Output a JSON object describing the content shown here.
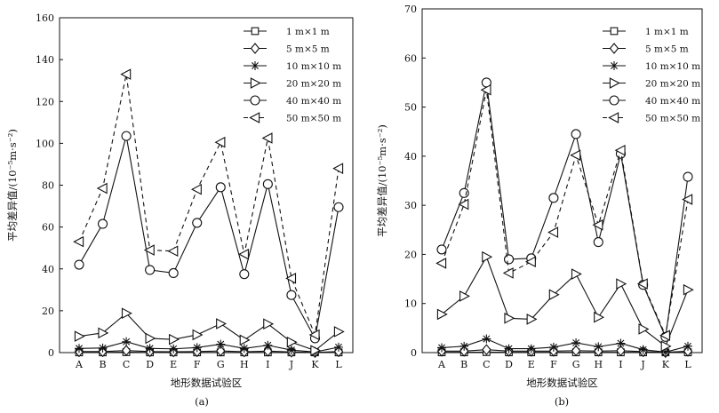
{
  "chart_data": [
    {
      "type": "line",
      "panel_label": "(a)",
      "xlabel": "地形数据试验区",
      "ylabel": "平均差异值/(10⁻⁵m·s⁻²)",
      "ylim": [
        0,
        160
      ],
      "yticks": [
        0,
        20,
        40,
        60,
        80,
        100,
        120,
        140,
        160
      ],
      "categories": [
        "A",
        "B",
        "C",
        "D",
        "E",
        "F",
        "G",
        "H",
        "I",
        "J",
        "K",
        "L"
      ],
      "legend_position": "top-right",
      "series": [
        {
          "name": "1 m×1 m",
          "marker": "square",
          "dash": false,
          "values": [
            0.1,
            0.1,
            0.2,
            0.1,
            0.1,
            0.1,
            0.1,
            0.1,
            0.1,
            0.1,
            0.1,
            0.1
          ]
        },
        {
          "name": "5 m×5 m",
          "marker": "diamond",
          "dash": false,
          "values": [
            0.5,
            0.5,
            1.0,
            0.5,
            0.4,
            0.5,
            0.8,
            0.4,
            0.7,
            0.3,
            0.1,
            0.5
          ]
        },
        {
          "name": "10 m×10 m",
          "marker": "star",
          "dash": false,
          "values": [
            2.0,
            2.2,
            5.2,
            2.0,
            1.8,
            2.4,
            4.0,
            2.0,
            3.5,
            1.2,
            0.3,
            2.6
          ]
        },
        {
          "name": "20 m×20 m",
          "marker": "triangle-right",
          "dash": false,
          "values": [
            7.8,
            9.4,
            18.8,
            6.8,
            6.3,
            8.5,
            13.8,
            6.0,
            13.7,
            5.0,
            1.0,
            10.0
          ]
        },
        {
          "name": "40 m×40 m",
          "marker": "circle",
          "dash": false,
          "values": [
            42,
            61.5,
            103.5,
            39.5,
            38,
            62,
            79,
            37.5,
            80.5,
            27.5,
            6.8,
            69.5
          ]
        },
        {
          "name": "50 m×50 m",
          "marker": "triangle-left",
          "dash": true,
          "values": [
            53,
            78.5,
            133,
            49,
            48.5,
            78,
            100.5,
            47,
            102.5,
            35.5,
            8.5,
            88
          ]
        }
      ]
    },
    {
      "type": "line",
      "panel_label": "(b)",
      "xlabel": "地形数据试验区",
      "ylabel": "平均差异值/(10⁻⁵m·s⁻²)",
      "ylim": [
        0,
        70
      ],
      "yticks": [
        0,
        10,
        20,
        30,
        40,
        50,
        60,
        70
      ],
      "categories": [
        "A",
        "B",
        "C",
        "D",
        "E",
        "F",
        "G",
        "H",
        "I",
        "J",
        "K",
        "L"
      ],
      "legend_position": "top-right",
      "series": [
        {
          "name": "1 m×1 m",
          "marker": "square",
          "dash": false,
          "values": [
            0.05,
            0.05,
            0.1,
            0.05,
            0.05,
            0.05,
            0.05,
            0.05,
            0.05,
            0.05,
            0.05,
            0.05
          ]
        },
        {
          "name": "5 m×5 m",
          "marker": "diamond",
          "dash": false,
          "values": [
            0.3,
            0.3,
            0.6,
            0.3,
            0.3,
            0.3,
            0.4,
            0.3,
            0.4,
            0.2,
            0.05,
            0.3
          ]
        },
        {
          "name": "10 m×10 m",
          "marker": "star",
          "dash": false,
          "values": [
            1.0,
            1.3,
            2.8,
            0.8,
            0.8,
            1.1,
            2.0,
            1.2,
            1.9,
            0.6,
            0.1,
            1.3
          ]
        },
        {
          "name": "20 m×20 m",
          "marker": "triangle-right",
          "dash": false,
          "values": [
            7.8,
            11.5,
            19.5,
            7.0,
            6.8,
            11.8,
            16.0,
            7.2,
            14.0,
            4.8,
            1.3,
            12.8
          ]
        },
        {
          "name": "40 m×40 m",
          "marker": "circle",
          "dash": false,
          "values": [
            21.0,
            32.5,
            55.0,
            19.0,
            19.2,
            31.5,
            44.5,
            22.5,
            40.5,
            13.8,
            3.2,
            35.8
          ]
        },
        {
          "name": "50 m×50 m",
          "marker": "triangle-left",
          "dash": true,
          "values": [
            18.2,
            30.2,
            53.5,
            16.2,
            18.5,
            24.5,
            40.2,
            26.0,
            41.2,
            14.0,
            3.5,
            31.2
          ]
        }
      ]
    }
  ]
}
